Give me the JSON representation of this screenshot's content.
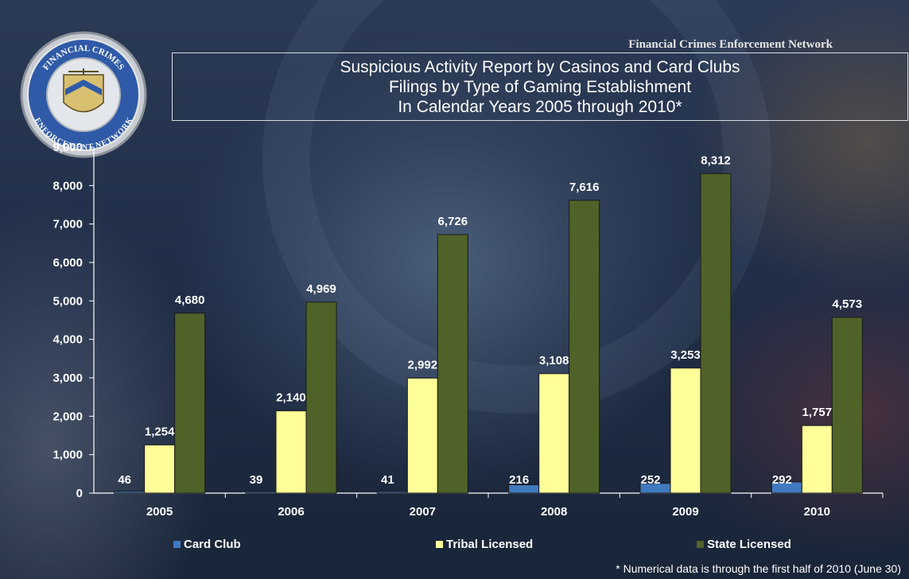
{
  "header": {
    "network_label": "Financial Crimes Enforcement Network",
    "title_lines": [
      "Suspicious Activity Report by Casinos and Card Clubs",
      "Filings by Type of Gaming Establishment",
      "In Calendar Years 2005 through 2010*"
    ]
  },
  "seal": {
    "icon": "fincen-seal-icon",
    "text_top": "FINANCIAL CRIMES",
    "text_bottom": "ENFORCEMENT NETWORK"
  },
  "footnote": "* Numerical data is through the first half of  2010 (June 30)",
  "chart_data": {
    "type": "bar",
    "title": "Suspicious Activity Report by Casinos and Card Clubs Filings by Type of Gaming Establishment In Calendar Years 2005 through 2010*",
    "xlabel": "",
    "ylabel": "",
    "categories": [
      "2005",
      "2006",
      "2007",
      "2008",
      "2009",
      "2010"
    ],
    "ylim": [
      0,
      9000
    ],
    "yticks": [
      0,
      1000,
      2000,
      3000,
      4000,
      5000,
      6000,
      7000,
      8000,
      9000
    ],
    "ytick_labels": [
      "0",
      "1,000",
      "2,000",
      "3,000",
      "4,000",
      "5,000",
      "6,000",
      "7,000",
      "8,000",
      "9,000"
    ],
    "legend_position": "bottom",
    "grid": false,
    "series": [
      {
        "name": "Card Club",
        "color": "#3f7ac0",
        "values": [
          46,
          39,
          41,
          216,
          252,
          292
        ],
        "labels": [
          "46",
          "39",
          "41",
          "216",
          "252",
          "292"
        ]
      },
      {
        "name": "Tribal Licensed",
        "color": "#ffff99",
        "values": [
          1254,
          2140,
          2992,
          3108,
          3253,
          1757
        ],
        "labels": [
          "1,254",
          "2,140",
          "2,992",
          "3,108",
          "3,253",
          "1,757"
        ]
      },
      {
        "name": "State Licensed",
        "color": "#4f6228",
        "values": [
          4680,
          4969,
          6726,
          7616,
          8312,
          4573
        ],
        "labels": [
          "4,680",
          "4,969",
          "6,726",
          "7,616",
          "8,312",
          "4,573"
        ]
      }
    ]
  }
}
